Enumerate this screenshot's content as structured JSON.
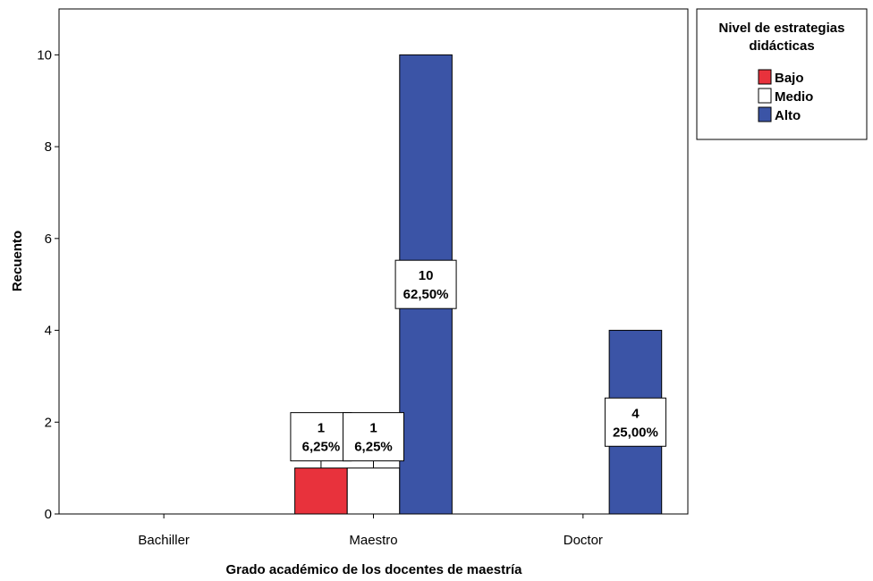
{
  "chart_data": {
    "type": "bar",
    "xlabel": "Grado académico de los docentes de maestría",
    "ylabel": "Recuento",
    "categories": [
      "Bachiller",
      "Maestro",
      "Doctor"
    ],
    "ylim": [
      0,
      11
    ],
    "yticks": [
      "0",
      "2",
      "4",
      "6",
      "8",
      "10"
    ],
    "grid": false,
    "series": [
      {
        "name": "Bajo",
        "color": "#e8323c",
        "values": [
          0,
          1,
          0
        ],
        "labels": [
          [
            "",
            ""
          ],
          [
            "1",
            "6,25%"
          ],
          [
            "",
            ""
          ]
        ]
      },
      {
        "name": "Medio",
        "color": "#ffffff",
        "values": [
          0,
          1,
          0
        ],
        "labels": [
          [
            "",
            ""
          ],
          [
            "1",
            "6,25%"
          ],
          [
            "",
            ""
          ]
        ]
      },
      {
        "name": "Alto",
        "color": "#3b54a6",
        "values": [
          0,
          10,
          4
        ],
        "labels": [
          [
            "",
            ""
          ],
          [
            "10",
            "62,50%"
          ],
          [
            "4",
            "25,00%"
          ]
        ]
      }
    ],
    "legend": {
      "title_lines": [
        "Nivel de estrategias",
        "didácticas"
      ],
      "position": "top-right"
    }
  }
}
